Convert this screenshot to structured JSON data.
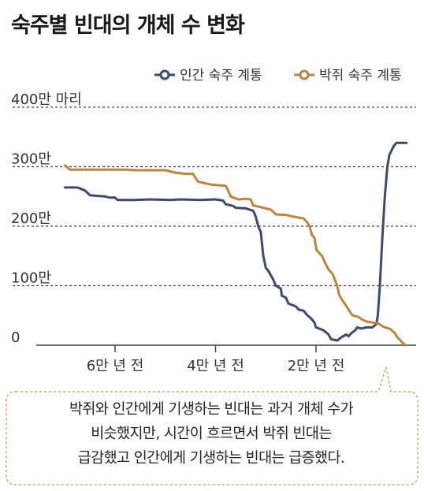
{
  "title": "숙주별 빈대의 개체 수 변화",
  "note": {
    "lines": [
      "박쥐와 인간에게 기생하는 빈대는 과거 개체 수가",
      "비슷했지만, 시간이 흐르면서 박쥐 빈대는",
      "급감했고 인간에게 기생하는 빈대는 급증했다."
    ]
  },
  "chart_data": {
    "type": "line",
    "title": "숙주별 빈대의 개체 수 변화",
    "xlabel": "",
    "ylabel": "",
    "x_unit": "years ago",
    "xlim": [
      53000,
      0
    ],
    "ylim": [
      0,
      4000000
    ],
    "x_ticks": [
      {
        "value": 40000,
        "label": "4만 년 전"
      },
      {
        "value": 60000,
        "label": "6만 년 전"
      },
      {
        "value": 20000,
        "label": "2만 년 전"
      }
    ],
    "y_ticks": [
      {
        "value": 0,
        "label": "0"
      },
      {
        "value": 1000000,
        "label": "100만"
      },
      {
        "value": 2000000,
        "label": "200만"
      },
      {
        "value": 3000000,
        "label": "300만"
      },
      {
        "value": 4000000,
        "label": "400만 마리"
      }
    ],
    "grid": "dashed horizontal",
    "legend_position": "top-right",
    "colors": {
      "human": "#3d4a6b",
      "bat": "#b8863f",
      "dashed_grid": "#444444",
      "note_border": "#c9a76a"
    },
    "series": [
      {
        "name": "인간 숙주 계통",
        "color": "#3d4a6b",
        "points": [
          [
            70000,
            2650000
          ],
          [
            67500,
            2650000
          ],
          [
            66000,
            2600000
          ],
          [
            65000,
            2520000
          ],
          [
            62000,
            2500000
          ],
          [
            61000,
            2480000
          ],
          [
            60000,
            2480000
          ],
          [
            59500,
            2440000
          ],
          [
            56000,
            2440000
          ],
          [
            53000,
            2450000
          ],
          [
            49000,
            2440000
          ],
          [
            47000,
            2450000
          ],
          [
            43000,
            2440000
          ],
          [
            40000,
            2450000
          ],
          [
            38500,
            2430000
          ],
          [
            38000,
            2370000
          ],
          [
            36500,
            2340000
          ],
          [
            36000,
            2310000
          ],
          [
            34000,
            2300000
          ],
          [
            32500,
            2260000
          ],
          [
            32000,
            2160000
          ],
          [
            31500,
            2000000
          ],
          [
            31000,
            1900000
          ],
          [
            30500,
            1500000
          ],
          [
            30000,
            1300000
          ],
          [
            29500,
            1250000
          ],
          [
            28500,
            1100000
          ],
          [
            28000,
            1000000
          ],
          [
            27000,
            950000
          ],
          [
            26800,
            830000
          ],
          [
            26000,
            800000
          ],
          [
            25500,
            700000
          ],
          [
            24000,
            650000
          ],
          [
            23500,
            600000
          ],
          [
            22500,
            580000
          ],
          [
            21800,
            510000
          ],
          [
            21000,
            450000
          ],
          [
            20300,
            380000
          ],
          [
            20000,
            300000
          ],
          [
            18500,
            250000
          ],
          [
            17500,
            180000
          ],
          [
            17000,
            100000
          ],
          [
            15800,
            80000
          ],
          [
            15000,
            130000
          ],
          [
            14000,
            180000
          ],
          [
            13500,
            150000
          ],
          [
            13000,
            200000
          ],
          [
            12200,
            250000
          ],
          [
            11800,
            300000
          ],
          [
            11000,
            280000
          ],
          [
            10000,
            300000
          ],
          [
            8800,
            300000
          ],
          [
            8000,
            350000
          ],
          [
            7700,
            500000
          ],
          [
            7300,
            1000000
          ],
          [
            6800,
            1800000
          ],
          [
            6300,
            2500000
          ],
          [
            5800,
            3000000
          ],
          [
            5400,
            3200000
          ],
          [
            4800,
            3300000
          ],
          [
            4500,
            3350000
          ],
          [
            4000,
            3400000
          ],
          [
            3000,
            3400000
          ],
          [
            2000,
            3400000
          ]
        ]
      },
      {
        "name": "박쥐 숙주 계통",
        "color": "#b8863f",
        "points": [
          [
            70000,
            3020000
          ],
          [
            69500,
            2990000
          ],
          [
            69000,
            2950000
          ],
          [
            60000,
            2950000
          ],
          [
            59500,
            2950000
          ],
          [
            58000,
            2950000
          ],
          [
            56000,
            2940000
          ],
          [
            50000,
            2940000
          ],
          [
            48000,
            2900000
          ],
          [
            46000,
            2880000
          ],
          [
            44500,
            2880000
          ],
          [
            43500,
            2750000
          ],
          [
            41000,
            2700000
          ],
          [
            38000,
            2680000
          ],
          [
            37500,
            2600000
          ],
          [
            37000,
            2500000
          ],
          [
            35500,
            2450000
          ],
          [
            34000,
            2460000
          ],
          [
            33000,
            2450000
          ],
          [
            32500,
            2350000
          ],
          [
            30000,
            2300000
          ],
          [
            29000,
            2280000
          ],
          [
            28000,
            2200000
          ],
          [
            26000,
            2190000
          ],
          [
            24500,
            2160000
          ],
          [
            22500,
            2130000
          ],
          [
            21800,
            2070000
          ],
          [
            21300,
            2000000
          ],
          [
            20800,
            1850000
          ],
          [
            20300,
            1800000
          ],
          [
            19900,
            1600000
          ],
          [
            18800,
            1500000
          ],
          [
            18000,
            1350000
          ],
          [
            17500,
            1270000
          ],
          [
            16700,
            1200000
          ],
          [
            15800,
            1000000
          ],
          [
            15400,
            850000
          ],
          [
            14800,
            760000
          ],
          [
            14300,
            700000
          ],
          [
            13400,
            580000
          ],
          [
            12700,
            500000
          ],
          [
            11700,
            480000
          ],
          [
            10800,
            430000
          ],
          [
            10000,
            400000
          ],
          [
            8700,
            380000
          ],
          [
            7500,
            360000
          ],
          [
            6600,
            310000
          ],
          [
            5200,
            270000
          ],
          [
            4300,
            200000
          ],
          [
            3800,
            130000
          ],
          [
            3300,
            90000
          ],
          [
            2800,
            40000
          ],
          [
            2200,
            0
          ]
        ]
      }
    ]
  }
}
